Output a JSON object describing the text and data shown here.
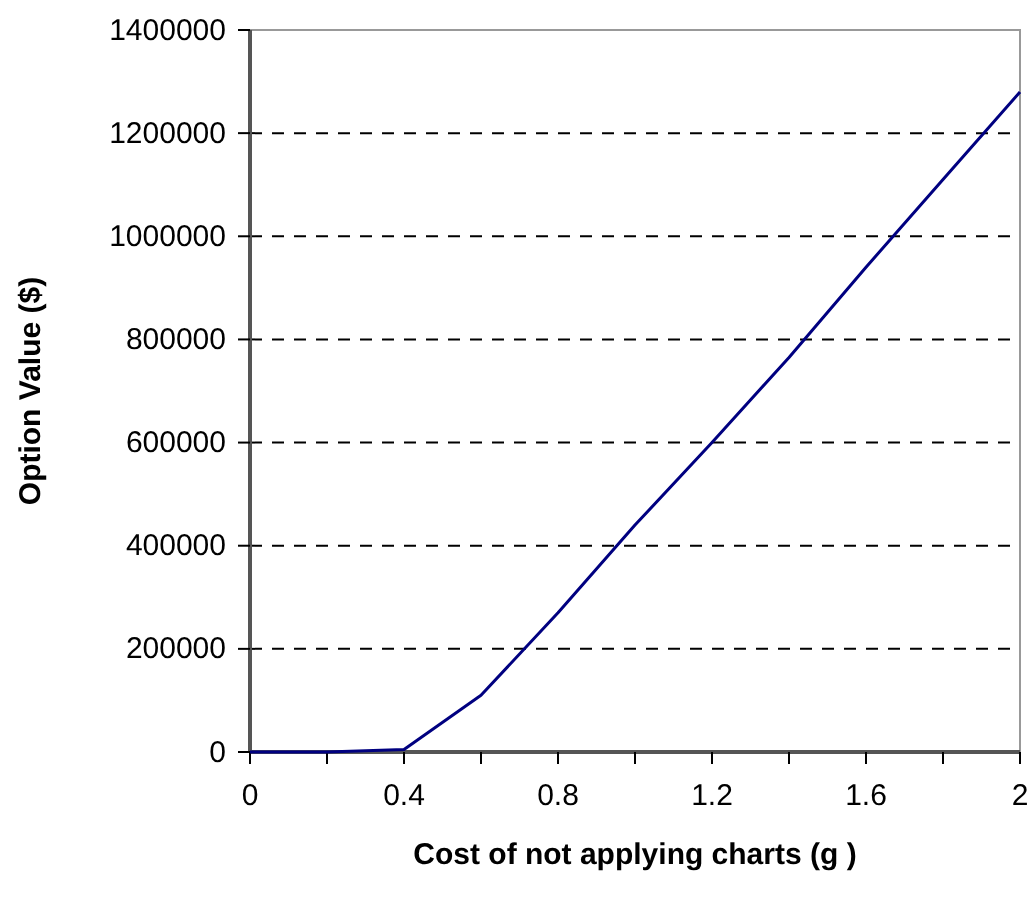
{
  "chart_data": {
    "type": "line",
    "xlabel": "Cost of not applying charts (g )",
    "ylabel": "Option Value ($)",
    "x": [
      0,
      0.2,
      0.4,
      0.6,
      0.8,
      1.0,
      1.2,
      1.4,
      1.6,
      1.8,
      2.0
    ],
    "series": [
      {
        "color": "#000080",
        "values": [
          0,
          0,
          5000,
          110000,
          270000,
          440000,
          600000,
          765000,
          940000,
          1110000,
          1280000
        ]
      }
    ],
    "xlim": [
      0,
      2
    ],
    "xticks": [
      0,
      {
        "value": 0.2,
        "label": null
      },
      0.4,
      {
        "value": 0.6,
        "label": null
      },
      0.8,
      {
        "value": 1.0,
        "label": null
      },
      1.2,
      {
        "value": 1.4,
        "label": null
      },
      1.6,
      {
        "value": 1.8,
        "label": null
      },
      2
    ],
    "ylim": [
      0,
      1400000
    ],
    "yticks": [
      0,
      200000,
      400000,
      600000,
      800000,
      1000000,
      1200000,
      1400000
    ],
    "grid": "y",
    "line_style": "solid",
    "marker": "none"
  }
}
